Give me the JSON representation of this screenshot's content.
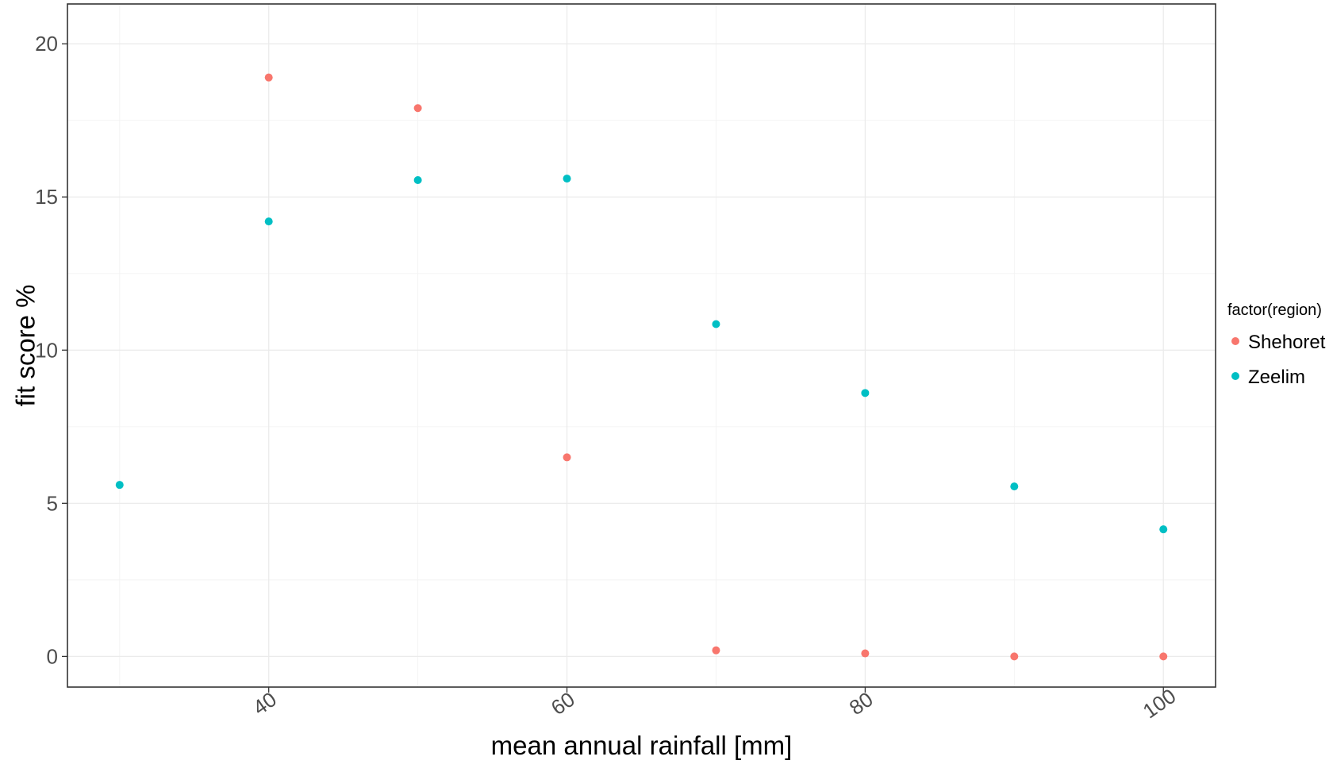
{
  "chart_data": {
    "type": "scatter",
    "title": "",
    "xlabel": "mean annual rainfall [mm]",
    "ylabel": "fit score %",
    "xlim": [
      26.5,
      103.5
    ],
    "ylim": [
      -1,
      21.3
    ],
    "x_ticks": [
      40,
      60,
      80,
      100
    ],
    "x_minor_ticks": [
      30,
      50,
      70,
      90
    ],
    "y_ticks": [
      0,
      5,
      10,
      15,
      20
    ],
    "y_minor_ticks": [
      2.5,
      7.5,
      12.5,
      17.5
    ],
    "x_tick_rotation_deg": -35,
    "grid": true,
    "legend": {
      "title": "factor(region)",
      "position": "right"
    },
    "series": [
      {
        "name": "Shehoret",
        "color": "#F8766D",
        "points": [
          {
            "x": 40,
            "y": 18.9
          },
          {
            "x": 50,
            "y": 17.9
          },
          {
            "x": 60,
            "y": 6.5
          },
          {
            "x": 70,
            "y": 0.2
          },
          {
            "x": 80,
            "y": 0.1
          },
          {
            "x": 90,
            "y": 0.0
          },
          {
            "x": 100,
            "y": 0.0
          }
        ]
      },
      {
        "name": "Zeelim",
        "color": "#00BFC4",
        "points": [
          {
            "x": 30,
            "y": 5.6
          },
          {
            "x": 40,
            "y": 14.2
          },
          {
            "x": 50,
            "y": 15.55
          },
          {
            "x": 60,
            "y": 15.6
          },
          {
            "x": 70,
            "y": 10.85
          },
          {
            "x": 80,
            "y": 8.6
          },
          {
            "x": 90,
            "y": 5.55
          },
          {
            "x": 100,
            "y": 4.15
          }
        ]
      }
    ]
  }
}
